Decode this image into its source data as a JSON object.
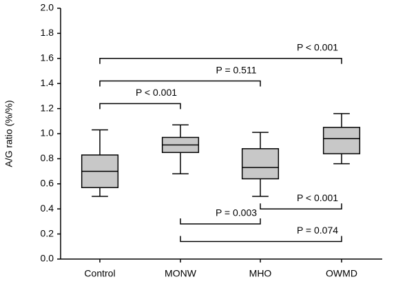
{
  "chart_data": {
    "type": "box",
    "y_label": "A/G ratio (%/%)",
    "categories": [
      "Control",
      "MONW",
      "MHO",
      "OWMD"
    ],
    "boxes": [
      {
        "min": 0.5,
        "q1": 0.57,
        "median": 0.7,
        "q3": 0.83,
        "max": 1.03
      },
      {
        "min": 0.68,
        "q1": 0.85,
        "median": 0.91,
        "q3": 0.97,
        "max": 1.07
      },
      {
        "min": 0.5,
        "q1": 0.64,
        "median": 0.73,
        "q3": 0.88,
        "max": 1.01
      },
      {
        "min": 0.76,
        "q1": 0.84,
        "median": 0.96,
        "q3": 1.05,
        "max": 1.16
      }
    ],
    "color": "#c8c8c8",
    "ylim": [
      0,
      2
    ],
    "yticks": [
      {
        "value": 0,
        "label": "0.0"
      },
      {
        "value": 0.2,
        "label": "0.2"
      },
      {
        "value": 0.4,
        "label": "0.4"
      },
      {
        "value": 0.6,
        "label": "0.6"
      },
      {
        "value": 0.8,
        "label": "0.8"
      },
      {
        "value": 1,
        "label": "1.0"
      },
      {
        "value": 1.2,
        "label": "1.2"
      },
      {
        "value": 1.4,
        "label": "1.4"
      },
      {
        "value": 1.6,
        "label": "1.6"
      },
      {
        "value": 1.8,
        "label": "1.8"
      },
      {
        "value": 2,
        "label": "2.0"
      }
    ],
    "annotations": [
      {
        "text": "P < 0.001",
        "from": "Control",
        "to": "OWMD",
        "y": 1.6,
        "ticks": "down"
      },
      {
        "text": "P = 0.511",
        "from": "Control",
        "to": "MHO",
        "y": 1.42,
        "ticks": "down"
      },
      {
        "text": "P < 0.001",
        "from": "Control",
        "to": "MONW",
        "y": 1.24,
        "ticks": "down"
      },
      {
        "text": "P < 0.001",
        "from": "MHO",
        "to": "OWMD",
        "y": 0.4,
        "ticks": "up"
      },
      {
        "text": "P = 0.003",
        "from": "MONW",
        "to": "MHO",
        "y": 0.28,
        "ticks": "up"
      },
      {
        "text": "P = 0.074",
        "from": "MONW",
        "to": "OWMD",
        "y": 0.14,
        "ticks": "up"
      }
    ]
  }
}
